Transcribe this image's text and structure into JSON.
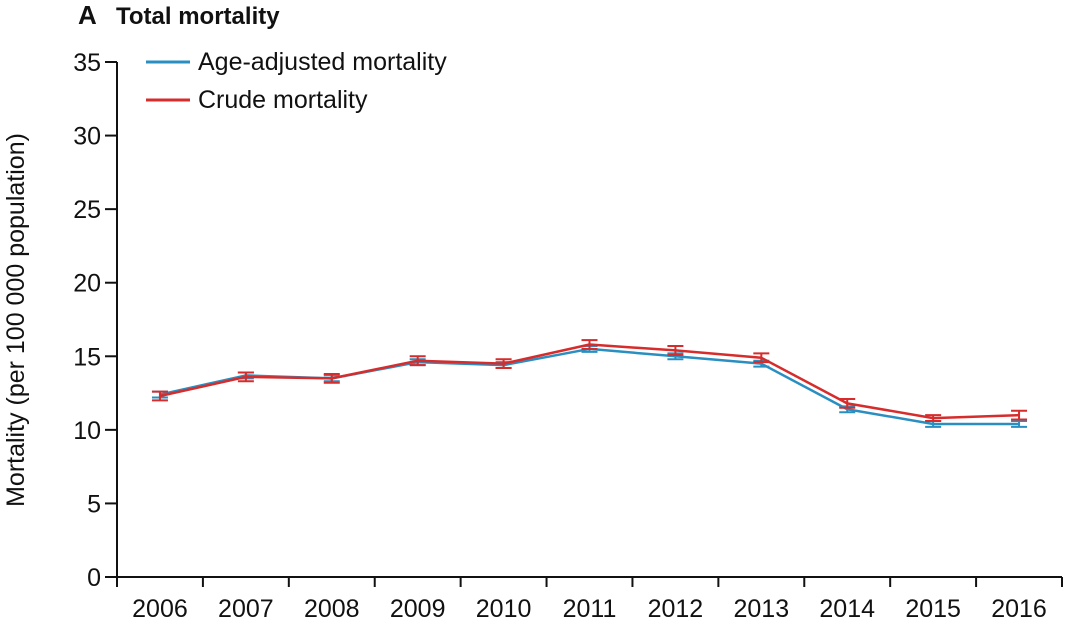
{
  "chart_data": {
    "type": "line",
    "panel_label": "A",
    "title": "Total mortality",
    "xlabel": "",
    "ylabel": "Mortality (per 100 000 population)",
    "categories": [
      "2006",
      "2007",
      "2008",
      "2009",
      "2010",
      "2011",
      "2012",
      "2013",
      "2014",
      "2015",
      "2016"
    ],
    "ylim": [
      0,
      35
    ],
    "yticks": [
      "0",
      "5",
      "10",
      "15",
      "20",
      "25",
      "30",
      "35"
    ],
    "grid": false,
    "legend_position": "top-left",
    "series": [
      {
        "name": "Age-adjusted mortality",
        "color": "#2a8fc0",
        "values": [
          12.4,
          13.7,
          13.5,
          14.6,
          14.4,
          15.5,
          15.0,
          14.5,
          11.4,
          10.4,
          10.4
        ],
        "error_low": [
          12.2,
          13.5,
          13.3,
          14.4,
          14.2,
          15.3,
          14.8,
          14.3,
          11.2,
          10.2,
          10.2
        ],
        "error_high": [
          12.6,
          13.9,
          13.7,
          14.8,
          14.6,
          15.7,
          15.2,
          14.7,
          11.6,
          10.6,
          10.6
        ]
      },
      {
        "name": "Crude mortality",
        "color": "#d62c2c",
        "values": [
          12.3,
          13.6,
          13.5,
          14.7,
          14.5,
          15.8,
          15.4,
          14.9,
          11.8,
          10.8,
          11.0
        ],
        "error_low": [
          12.0,
          13.3,
          13.2,
          14.4,
          14.2,
          15.5,
          15.1,
          14.6,
          11.5,
          10.6,
          10.7
        ],
        "error_high": [
          12.6,
          13.9,
          13.8,
          15.0,
          14.8,
          16.1,
          15.7,
          15.2,
          12.1,
          11.0,
          11.3
        ]
      }
    ]
  }
}
